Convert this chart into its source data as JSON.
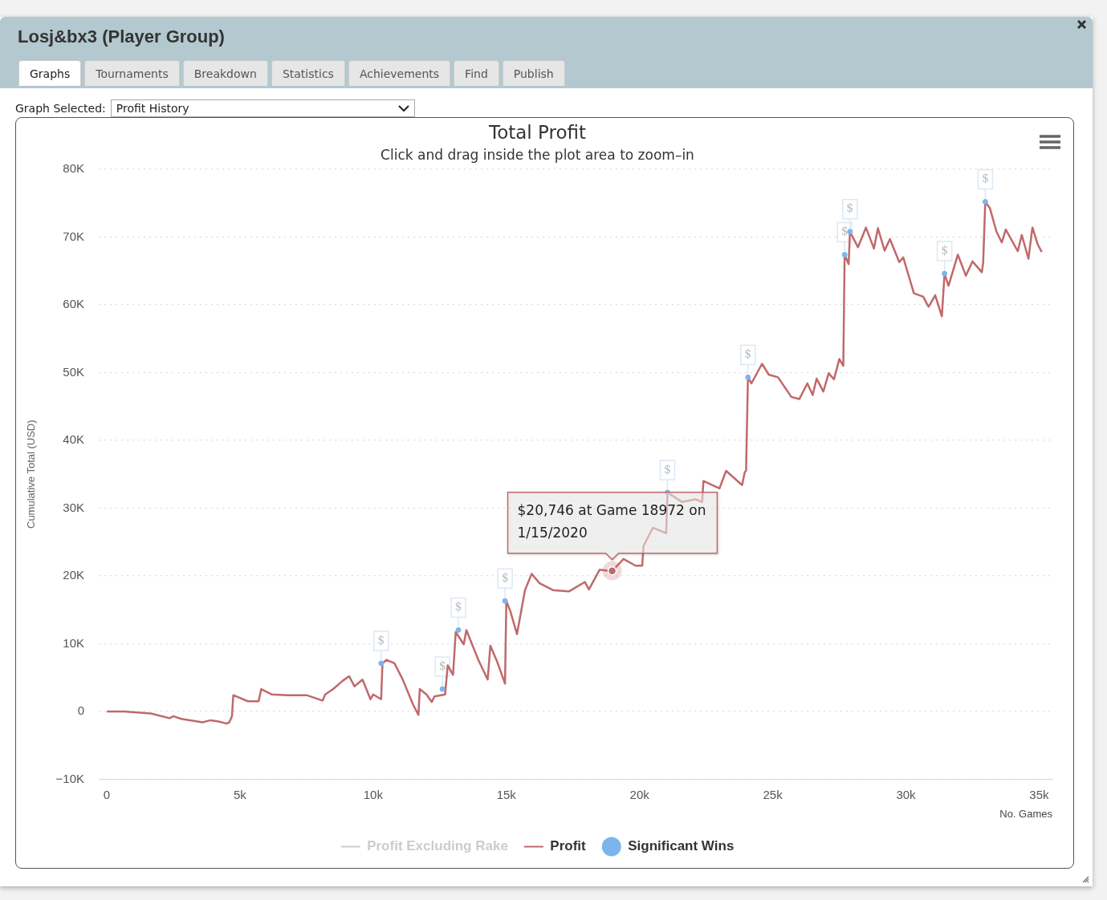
{
  "chart_data": {
    "type": "line",
    "title": "Total Profit",
    "subtitle": "Click and drag inside the plot area to zoom–in",
    "xlabel": "No. Games",
    "ylabel": "Cumulative Total (USD)",
    "xlim": [
      -300,
      35500
    ],
    "ylim": [
      -10000,
      80000
    ],
    "xticks": [
      {
        "value": 0,
        "label": "0"
      },
      {
        "value": 5000,
        "label": "5k"
      },
      {
        "value": 10000,
        "label": "10k"
      },
      {
        "value": 15000,
        "label": "15k"
      },
      {
        "value": 20000,
        "label": "20k"
      },
      {
        "value": 25000,
        "label": "25k"
      },
      {
        "value": 30000,
        "label": "30k"
      },
      {
        "value": 35000,
        "label": "35k"
      }
    ],
    "yticks": [
      {
        "value": -10000,
        "label": "−10K"
      },
      {
        "value": 0,
        "label": "0"
      },
      {
        "value": 10000,
        "label": "10K"
      },
      {
        "value": 20000,
        "label": "20K"
      },
      {
        "value": 30000,
        "label": "30K"
      },
      {
        "value": 40000,
        "label": "40K"
      },
      {
        "value": 50000,
        "label": "50K"
      },
      {
        "value": 60000,
        "label": "60K"
      },
      {
        "value": 70000,
        "label": "70K"
      },
      {
        "value": 80000,
        "label": "80K"
      }
    ],
    "grid": "y",
    "legend": "bottom",
    "line_style": "solid",
    "series": [
      {
        "name": "Profit Excluding Rake",
        "color": "#cccccc"
      },
      {
        "name": "Profit",
        "color": "#c0696b",
        "marker": "none",
        "x": [
          0,
          660,
          1660,
          2360,
          2500,
          2800,
          3600,
          3900,
          4200,
          4500,
          4600,
          4700,
          4750,
          5300,
          5700,
          5800,
          6200,
          6800,
          7500,
          8100,
          8200,
          8500,
          8850,
          9100,
          9300,
          9600,
          9900,
          10000,
          10300,
          10350,
          10500,
          10800,
          11100,
          11500,
          11700,
          11750,
          12000,
          12200,
          12300,
          12700,
          12800,
          13000,
          13100,
          13400,
          13500,
          13950,
          14300,
          14400,
          14650,
          14950,
          15000,
          15150,
          15400,
          15700,
          15950,
          16250,
          16750,
          17350,
          17950,
          18100,
          18500,
          18972,
          19400,
          19850,
          20100,
          20150,
          20500,
          21000,
          21050,
          21600,
          22100,
          22350,
          22400,
          23000,
          23250,
          23850,
          23950,
          24000,
          24070,
          24200,
          24600,
          24850,
          25200,
          25700,
          26000,
          26300,
          26500,
          26650,
          26900,
          27100,
          27300,
          27500,
          27650,
          27700,
          27850,
          27900,
          28200,
          28500,
          28800,
          28950,
          29200,
          29400,
          29750,
          29900,
          30300,
          30650,
          30850,
          31100,
          31350,
          31450,
          31600,
          31950,
          32250,
          32500,
          32850,
          32900,
          32980,
          33150,
          33400,
          33600,
          33750,
          34200,
          34350,
          34600,
          34750,
          34950,
          35100
        ],
        "values": [
          0,
          0,
          -300,
          -1000,
          -700,
          -1100,
          -1600,
          -1300,
          -1500,
          -1800,
          -1600,
          -700,
          2400,
          1500,
          1500,
          3300,
          2500,
          2400,
          2400,
          1600,
          2500,
          3300,
          4500,
          5200,
          3700,
          4700,
          1800,
          2500,
          1800,
          7100,
          7600,
          7100,
          4800,
          1000,
          -500,
          3300,
          2500,
          1400,
          2200,
          2500,
          6800,
          5400,
          11700,
          9900,
          12000,
          7600,
          4700,
          9700,
          7400,
          4100,
          16300,
          14800,
          11400,
          17900,
          20300,
          18900,
          17900,
          17700,
          19100,
          18000,
          20900,
          20700,
          22500,
          21500,
          21500,
          24400,
          27100,
          26300,
          32300,
          30900,
          31300,
          30900,
          34000,
          32900,
          35500,
          33400,
          35300,
          35500,
          49300,
          48400,
          51300,
          49700,
          49300,
          46400,
          46100,
          48400,
          46700,
          49100,
          47200,
          49900,
          49000,
          52000,
          51000,
          67400,
          66000,
          70800,
          68500,
          71400,
          68300,
          71300,
          68000,
          69700,
          66300,
          67000,
          61700,
          61200,
          59700,
          61400,
          58300,
          64600,
          62800,
          67400,
          64300,
          66400,
          64800,
          66200,
          75200,
          74300,
          70800,
          69200,
          71100,
          67900,
          70300,
          66800,
          71400,
          68900,
          67800
        ]
      },
      {
        "name": "Significant Wins",
        "type": "scatter",
        "color": "#7cb5ec",
        "marker": "circle",
        "x": [
          10300,
          12600,
          13200,
          14950,
          21050,
          24070,
          27700,
          27900,
          31450,
          32980
        ],
        "values": [
          7100,
          3300,
          12000,
          16300,
          32300,
          49300,
          67400,
          70800,
          64600,
          75200
        ],
        "value_labels": [
          "$",
          "$",
          "$",
          "$",
          "$",
          "$",
          "$",
          "$",
          "$",
          "$"
        ]
      }
    ],
    "annotations": [
      "Losj&bx3 (Player Group)",
      "Graphs",
      "Tournaments",
      "Breakdown",
      "Statistics",
      "Achievements",
      "Find",
      "Publish",
      "Graph Selected:",
      "Profit History",
      {
        "text": "$20,746 at Game 18972 on 1/15/2020",
        "x": 18972,
        "y": 20746
      }
    ]
  }
}
